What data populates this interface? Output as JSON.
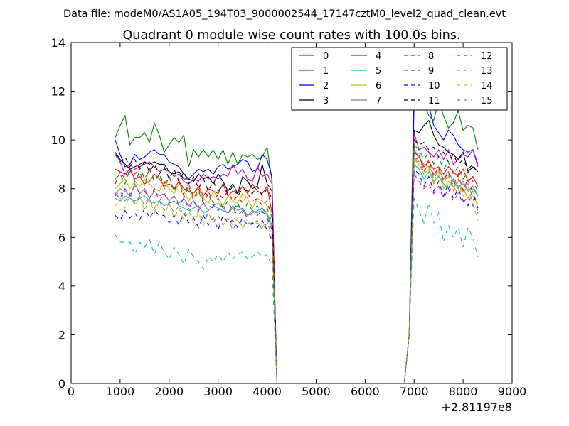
{
  "figure": {
    "suptitle": "Data file: modeM0/AS1A05_194T03_9000002544_17147cztM0_level2_quad_clean.evt",
    "title": "Quadrant 0 module wise count rates with 100.0s bins.",
    "x_offset_label": "+2.81197e8"
  },
  "chart_data": {
    "type": "line",
    "title": "Quadrant 0 module wise count rates with 100.0s bins.",
    "xlabel": "",
    "ylabel": "",
    "xlim": [
      0,
      9000
    ],
    "ylim": [
      0,
      14
    ],
    "x_offset": "+2.81197e8",
    "xticks": [
      0,
      1000,
      2000,
      3000,
      4000,
      5000,
      6000,
      7000,
      8000,
      9000
    ],
    "yticks": [
      0,
      2,
      4,
      6,
      8,
      10,
      12,
      14
    ],
    "grid": false,
    "legend_location": "upper right",
    "legend_columns": 4,
    "segments": [
      {
        "x_start": 900,
        "x_end": 4100,
        "step": 100
      },
      {
        "x": [
          4200,
          6800
        ],
        "note": "zero gap"
      },
      {
        "x_start": 7000,
        "x_end": 8300,
        "step": 100
      }
    ],
    "x": [
      900,
      1000,
      1100,
      1200,
      1300,
      1400,
      1500,
      1600,
      1700,
      1800,
      1900,
      2000,
      2100,
      2200,
      2300,
      2400,
      2500,
      2600,
      2700,
      2800,
      2900,
      3000,
      3100,
      3200,
      3300,
      3400,
      3500,
      3600,
      3700,
      3800,
      3900,
      4000,
      4100,
      4200,
      6800,
      6900,
      7000,
      7100,
      7200,
      7300,
      7400,
      7500,
      7600,
      7700,
      7800,
      7900,
      8000,
      8100,
      8200,
      8300
    ],
    "series": [
      {
        "name": "0",
        "color": "#ff0000",
        "dash": "solid",
        "values": [
          8.8,
          8.7,
          8.6,
          8.8,
          8.4,
          8.5,
          8.2,
          8.3,
          8.6,
          8.4,
          8.1,
          8.2,
          8.0,
          8.3,
          8.0,
          7.9,
          7.8,
          8.1,
          7.7,
          8.0,
          7.9,
          7.8,
          8.2,
          7.7,
          7.9,
          7.8,
          8.1,
          7.8,
          8.2,
          7.9,
          7.8,
          8.1,
          7.0,
          0,
          0,
          2.0,
          9.5,
          9.3,
          8.9,
          9.1,
          8.8,
          8.9,
          8.6,
          8.9,
          8.7,
          8.5,
          8.8,
          8.3,
          8.5,
          8.1
        ]
      },
      {
        "name": "1",
        "color": "#008000",
        "dash": "solid",
        "values": [
          10.1,
          10.6,
          11.0,
          9.8,
          10.1,
          10.1,
          10.3,
          9.9,
          10.7,
          10.2,
          9.5,
          9.8,
          10.1,
          9.9,
          10.2,
          8.9,
          9.6,
          9.3,
          9.6,
          9.3,
          9.6,
          9.2,
          9.6,
          9.0,
          9.5,
          9.0,
          9.4,
          9.3,
          9.4,
          9.2,
          9.3,
          9.7,
          8.3,
          0,
          0,
          2.0,
          12.1,
          11.7,
          11.5,
          11.0,
          10.8,
          11.6,
          11.0,
          10.5,
          10.7,
          11.2,
          10.4,
          10.6,
          10.5,
          9.6
        ]
      },
      {
        "name": "2",
        "color": "#0000ff",
        "dash": "solid",
        "values": [
          10.0,
          9.4,
          8.9,
          9.0,
          9.4,
          9.2,
          9.3,
          9.5,
          9.6,
          9.4,
          9.4,
          9.1,
          9.0,
          8.9,
          8.6,
          8.4,
          8.6,
          8.8,
          8.7,
          8.8,
          8.6,
          8.9,
          9.0,
          8.8,
          8.9,
          9.0,
          9.2,
          9.1,
          8.7,
          8.8,
          9.4,
          9.2,
          8.5,
          0,
          0,
          2.0,
          11.5,
          11.5,
          11.4,
          11.4,
          10.6,
          10.3,
          10.0,
          10.4,
          10.2,
          9.8,
          9.6,
          9.5,
          9.6,
          9.0
        ]
      },
      {
        "name": "3",
        "color": "#000000",
        "dash": "solid",
        "values": [
          9.5,
          9.2,
          9.0,
          8.8,
          8.9,
          9.0,
          9.1,
          9.0,
          9.1,
          9.0,
          9.0,
          8.7,
          8.6,
          8.7,
          8.4,
          8.4,
          8.3,
          8.6,
          8.4,
          8.5,
          8.2,
          8.6,
          8.3,
          7.9,
          8.2,
          7.8,
          8.5,
          8.3,
          8.0,
          8.1,
          9.0,
          8.2,
          7.9,
          0,
          0,
          2.0,
          10.4,
          10.3,
          10.6,
          10.8,
          10.2,
          9.8,
          9.7,
          9.5,
          9.4,
          9.2,
          9.5,
          8.7,
          8.9,
          8.7
        ]
      },
      {
        "name": "4",
        "color": "#bf00bf",
        "dash": "solid",
        "values": [
          9.5,
          9.1,
          8.6,
          8.7,
          8.8,
          8.9,
          9.0,
          9.1,
          8.9,
          8.7,
          8.8,
          8.7,
          8.5,
          8.6,
          8.3,
          8.2,
          8.4,
          8.3,
          8.6,
          8.4,
          8.5,
          8.4,
          8.6,
          8.5,
          9.0,
          8.6,
          8.8,
          8.4,
          8.3,
          8.9,
          8.5,
          8.6,
          8.2,
          0,
          0,
          2.0,
          10.3,
          9.6,
          9.7,
          9.5,
          9.3,
          9.6,
          9.2,
          9.6,
          9.0,
          9.2,
          9.4,
          9.3,
          9.6,
          8.9
        ]
      },
      {
        "name": "5",
        "color": "#00bfbf",
        "dash": "solid",
        "values": [
          7.6,
          7.5,
          7.7,
          7.6,
          7.5,
          7.6,
          7.7,
          7.5,
          7.4,
          7.5,
          7.3,
          7.4,
          7.5,
          7.3,
          7.2,
          7.1,
          7.2,
          7.3,
          7.0,
          7.1,
          7.3,
          7.2,
          7.1,
          7.0,
          7.2,
          7.3,
          7.1,
          6.9,
          7.0,
          7.1,
          7.2,
          7.0,
          6.5,
          0,
          0,
          2.0,
          9.0,
          8.8,
          8.4,
          8.7,
          8.3,
          8.5,
          8.2,
          8.0,
          8.4,
          8.1,
          8.2,
          7.9,
          8.0,
          7.7
        ]
      },
      {
        "name": "6",
        "color": "#bfbf00",
        "dash": "solid",
        "values": [
          8.0,
          8.2,
          8.4,
          8.0,
          8.3,
          8.1,
          8.4,
          8.2,
          8.0,
          7.9,
          8.3,
          8.0,
          7.8,
          8.2,
          7.9,
          7.5,
          7.8,
          8.0,
          7.6,
          7.4,
          7.9,
          7.6,
          7.3,
          7.7,
          7.5,
          7.4,
          7.8,
          7.6,
          7.2,
          7.6,
          7.5,
          7.3,
          7.0,
          0,
          0,
          2.0,
          9.2,
          9.0,
          8.6,
          8.8,
          8.2,
          8.6,
          8.0,
          8.3,
          8.1,
          7.8,
          8.0,
          7.6,
          7.9,
          7.2
        ]
      },
      {
        "name": "7",
        "color": "#808080",
        "dash": "solid",
        "values": [
          7.8,
          8.0,
          7.9,
          7.7,
          8.2,
          7.8,
          8.0,
          7.6,
          7.9,
          7.7,
          7.8,
          7.5,
          7.7,
          7.4,
          7.6,
          7.3,
          7.5,
          7.2,
          7.4,
          7.1,
          7.3,
          7.4,
          7.2,
          7.0,
          7.3,
          7.1,
          7.2,
          6.9,
          7.1,
          7.0,
          7.2,
          6.9,
          6.4,
          0,
          0,
          2.0,
          9.6,
          9.3,
          9.0,
          8.9,
          8.6,
          8.8,
          8.4,
          8.7,
          8.3,
          8.0,
          8.3,
          7.9,
          8.1,
          7.7
        ]
      },
      {
        "name": "8",
        "color": "#ff0000",
        "dash": "dashed",
        "values": [
          8.2,
          8.7,
          8.4,
          9.1,
          8.6,
          8.9,
          8.4,
          8.8,
          8.3,
          8.6,
          8.0,
          8.5,
          7.9,
          8.4,
          7.7,
          8.2,
          7.6,
          8.0,
          7.5,
          7.9,
          7.4,
          7.8,
          7.6,
          7.9,
          7.5,
          7.7,
          7.4,
          7.8,
          7.5,
          7.6,
          7.3,
          7.5,
          6.8,
          0,
          0,
          2.0,
          9.1,
          9.4,
          8.7,
          9.2,
          8.5,
          8.9,
          8.3,
          8.7,
          8.1,
          8.6,
          7.9,
          8.4,
          7.8,
          7.4
        ]
      },
      {
        "name": "9",
        "color": "#008000",
        "dash": "dashed",
        "values": [
          8.4,
          8.6,
          8.2,
          8.8,
          8.3,
          8.7,
          8.1,
          8.9,
          8.3,
          8.6,
          8.2,
          8.5,
          7.9,
          8.3,
          7.6,
          8.1,
          7.5,
          7.9,
          7.4,
          7.8,
          7.3,
          7.6,
          7.2,
          7.5,
          7.1,
          7.4,
          7.0,
          7.4,
          7.1,
          7.3,
          7.0,
          7.2,
          6.6,
          0,
          0,
          2.0,
          9.8,
          9.6,
          9.2,
          9.5,
          9.0,
          9.3,
          8.8,
          9.1,
          8.6,
          8.9,
          8.4,
          8.7,
          8.3,
          7.9
        ]
      },
      {
        "name": "10",
        "color": "#0000ff",
        "dash": "dashed",
        "values": [
          6.9,
          6.7,
          7.1,
          6.8,
          7.0,
          6.7,
          7.2,
          6.8,
          7.1,
          6.9,
          6.9,
          6.6,
          6.9,
          6.5,
          7.0,
          6.6,
          6.8,
          6.4,
          6.9,
          6.5,
          6.8,
          6.3,
          6.9,
          6.6,
          6.7,
          6.4,
          6.8,
          6.5,
          6.6,
          6.4,
          6.7,
          6.3,
          5.9,
          0,
          0,
          2.0,
          8.8,
          8.6,
          8.1,
          8.5,
          7.9,
          8.3,
          7.7,
          8.2,
          7.6,
          8.0,
          7.5,
          7.3,
          7.8,
          7.2
        ]
      },
      {
        "name": "11",
        "color": "#000000",
        "dash": "dashed",
        "values": [
          9.4,
          9.1,
          9.3,
          8.9,
          9.2,
          8.8,
          9.1,
          8.7,
          9.0,
          8.6,
          8.9,
          8.4,
          8.8,
          8.3,
          8.7,
          8.2,
          8.5,
          8.0,
          8.4,
          7.9,
          8.3,
          7.9,
          8.2,
          7.8,
          8.1,
          7.7,
          8.0,
          7.9,
          7.8,
          8.1,
          7.7,
          8.0,
          7.6,
          0,
          0,
          2.0,
          10.0,
          9.8,
          9.9,
          9.6,
          9.7,
          9.3,
          9.5,
          9.1,
          9.4,
          9.0,
          9.2,
          8.8,
          9.0,
          8.6
        ]
      },
      {
        "name": "12",
        "color": "#bf00bf",
        "dash": "dashed",
        "values": [
          7.8,
          7.6,
          8.0,
          7.7,
          8.1,
          7.8,
          7.9,
          7.6,
          8.0,
          7.5,
          7.8,
          7.4,
          7.7,
          7.3,
          7.6,
          7.2,
          7.5,
          7.1,
          7.4,
          7.3,
          7.2,
          7.1,
          7.3,
          7.0,
          7.2,
          6.9,
          7.1,
          6.8,
          7.0,
          6.9,
          7.1,
          6.8,
          6.3,
          0,
          0,
          2.0,
          8.6,
          8.3,
          8.0,
          8.2,
          7.8,
          8.1,
          7.6,
          8.0,
          7.5,
          7.8,
          7.4,
          7.7,
          7.3,
          7.0
        ]
      },
      {
        "name": "13",
        "color": "#00bfbf",
        "dash": "dashed",
        "values": [
          6.1,
          5.8,
          5.8,
          5.8,
          5.3,
          5.8,
          5.6,
          5.9,
          5.3,
          5.8,
          5.4,
          5.1,
          5.6,
          5.3,
          4.9,
          5.5,
          5.2,
          5.0,
          4.7,
          5.2,
          5.0,
          5.3,
          5.0,
          5.4,
          5.1,
          5.3,
          5.4,
          5.1,
          5.2,
          5.4,
          5.2,
          5.3,
          4.8,
          0,
          0,
          2.0,
          7.6,
          7.1,
          6.6,
          7.4,
          6.6,
          7.0,
          5.8,
          6.5,
          6.0,
          6.4,
          5.6,
          6.4,
          6.0,
          5.2
        ]
      },
      {
        "name": "14",
        "color": "#bfbf00",
        "dash": "dashed",
        "values": [
          7.3,
          7.6,
          7.2,
          7.8,
          7.3,
          7.7,
          7.1,
          7.6,
          7.0,
          7.5,
          6.9,
          7.4,
          6.8,
          7.2,
          6.7,
          7.1,
          6.6,
          7.0,
          6.5,
          7.0,
          6.6,
          6.9,
          6.5,
          6.8,
          6.5,
          6.8,
          6.4,
          6.7,
          6.5,
          6.6,
          6.4,
          6.7,
          6.0,
          0,
          0,
          2.0,
          9.3,
          9.0,
          8.6,
          8.9,
          8.3,
          8.7,
          8.1,
          8.5,
          7.9,
          8.3,
          7.7,
          8.0,
          7.4,
          6.7
        ]
      },
      {
        "name": "15",
        "color": "#808080",
        "dash": "dashed",
        "values": [
          7.7,
          7.9,
          7.5,
          7.8,
          7.4,
          7.7,
          7.3,
          7.6,
          7.2,
          7.5,
          7.1,
          7.4,
          7.0,
          7.3,
          6.9,
          7.2,
          6.8,
          7.1,
          6.7,
          7.0,
          6.6,
          6.9,
          6.5,
          6.8,
          6.3,
          6.7,
          6.4,
          6.6,
          6.5,
          6.7,
          6.3,
          6.6,
          6.1,
          0,
          0,
          2.0,
          9.4,
          9.1,
          8.7,
          9.0,
          8.4,
          8.8,
          8.2,
          8.6,
          8.0,
          8.4,
          7.8,
          8.2,
          7.6,
          7.1
        ]
      }
    ]
  }
}
